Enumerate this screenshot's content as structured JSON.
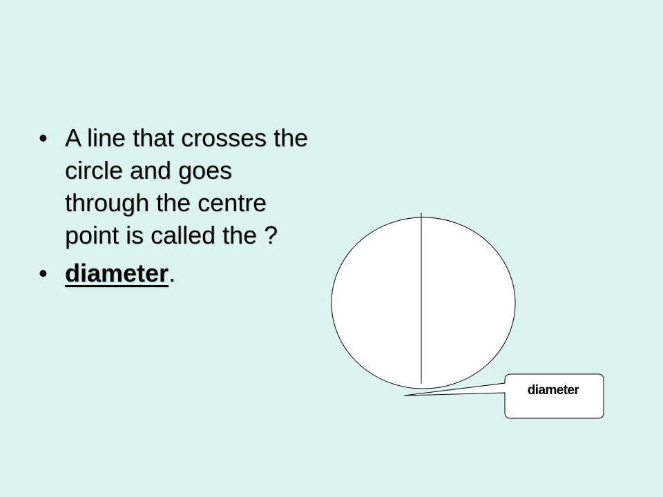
{
  "slide": {
    "background": "#dcf4f0",
    "bullets": {
      "bullet_char": "•",
      "question": "A line that crosses the circle and goes through the centre point is called the ?",
      "answer_word": "diameter",
      "answer_suffix": "."
    },
    "diagram": {
      "circle_fill": "#ffffff",
      "stroke": "#000000",
      "callout_label": "diameter"
    }
  }
}
